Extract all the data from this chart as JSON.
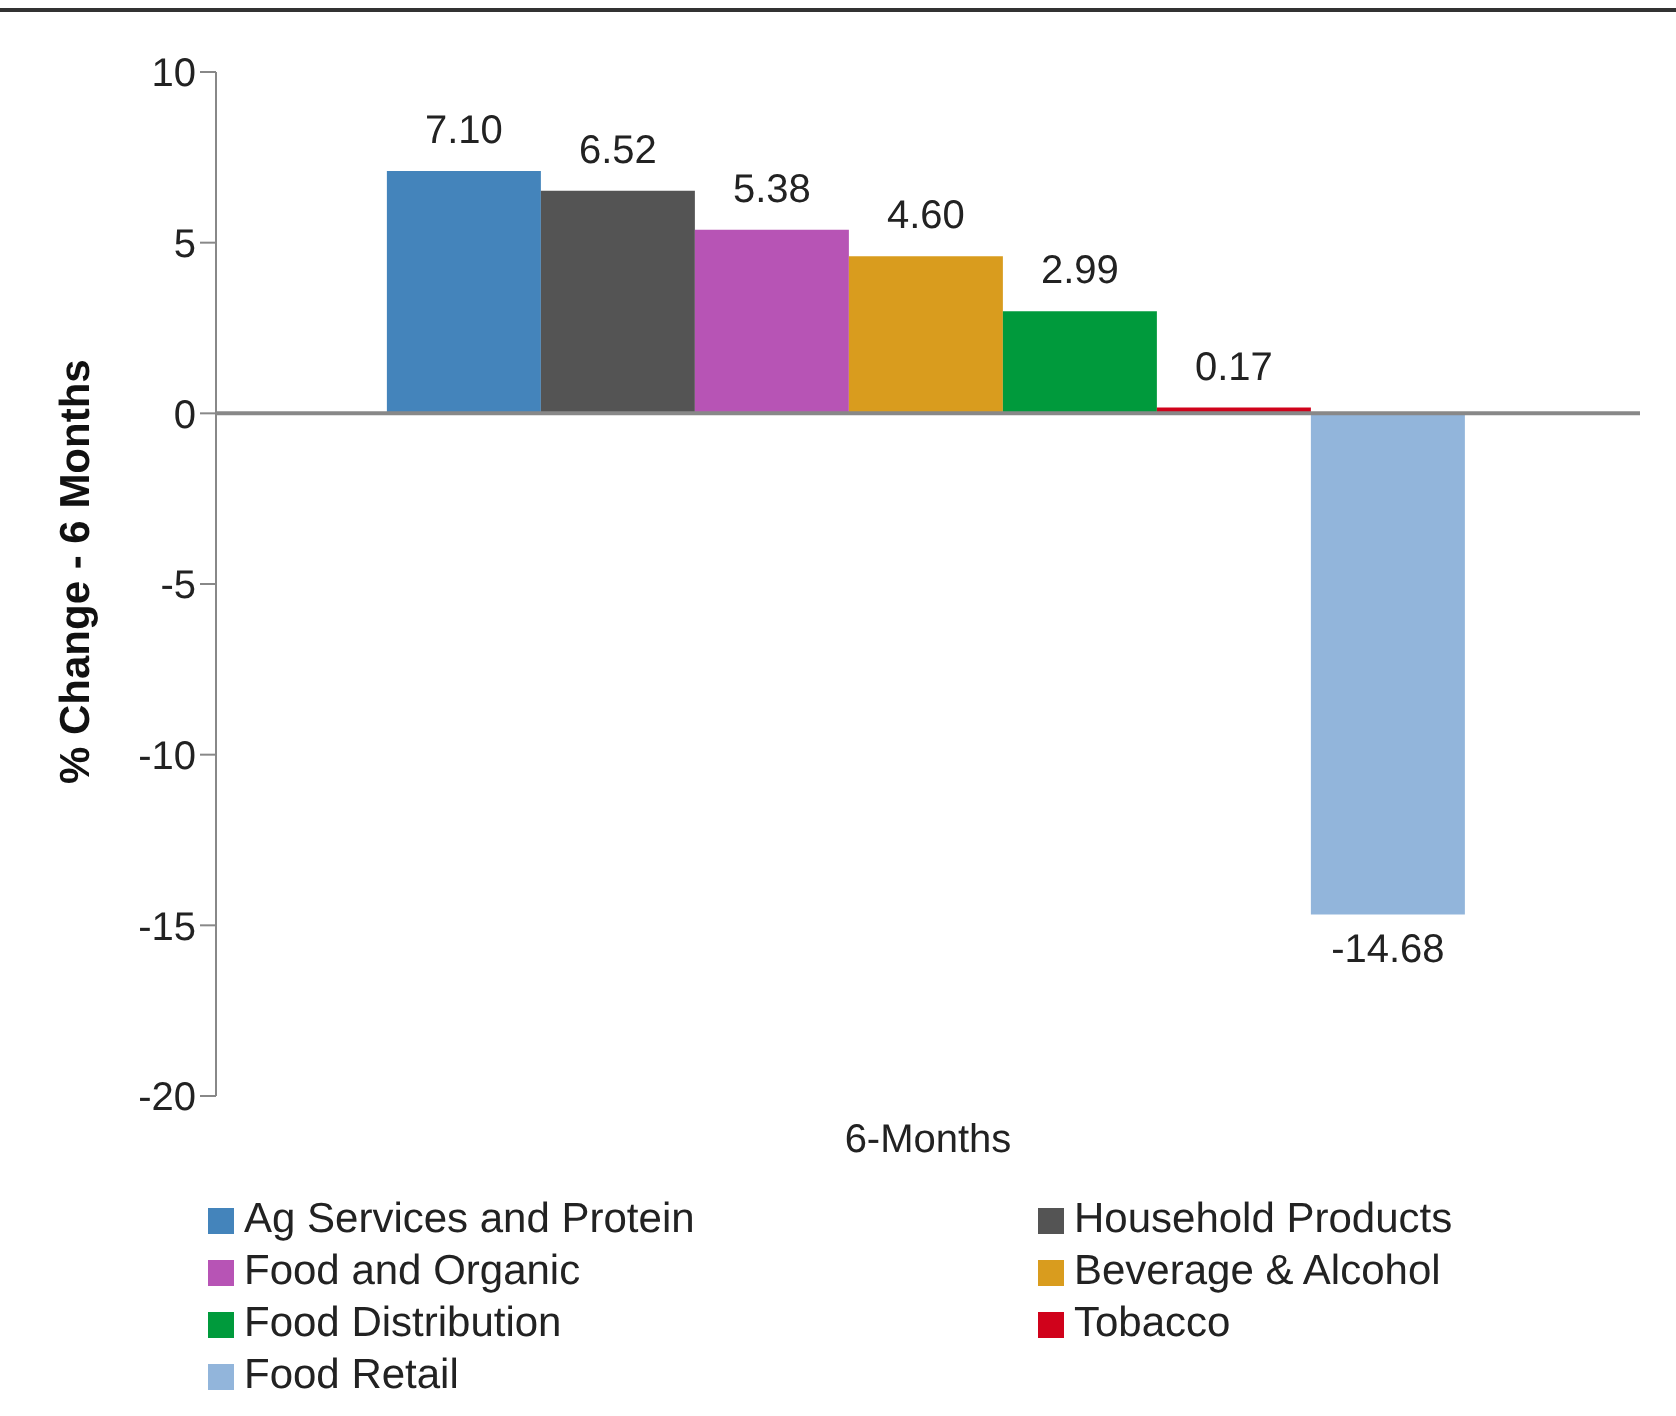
{
  "chart_data": {
    "type": "bar",
    "ylabel": "% Change - 6 Months",
    "categories": [
      "6-Months"
    ],
    "series": [
      {
        "name": "Ag Services and Protein",
        "color": "#4484bb",
        "values": [
          7.1
        ],
        "value_labels": [
          "7.10"
        ]
      },
      {
        "name": "Household Products",
        "color": "#545454",
        "values": [
          6.52
        ],
        "value_labels": [
          "6.52"
        ]
      },
      {
        "name": "Food and Organic",
        "color": "#b754b5",
        "values": [
          5.38
        ],
        "value_labels": [
          "5.38"
        ]
      },
      {
        "name": "Beverage & Alcohol",
        "color": "#d99c1e",
        "values": [
          4.6
        ],
        "value_labels": [
          "4.60"
        ]
      },
      {
        "name": "Food Distribution",
        "color": "#009a3c",
        "values": [
          2.99
        ],
        "value_labels": [
          "2.99"
        ]
      },
      {
        "name": "Tobacco",
        "color": "#d0021b",
        "values": [
          0.17
        ],
        "value_labels": [
          "0.17"
        ]
      },
      {
        "name": "Food Retail",
        "color": "#92b5db",
        "values": [
          -14.68
        ],
        "value_labels": [
          "-14.68"
        ]
      }
    ],
    "ylim": [
      -20,
      10
    ],
    "yticks": [
      -20,
      -15,
      -10,
      -5,
      0,
      5,
      10
    ],
    "legend": "bottom"
  }
}
